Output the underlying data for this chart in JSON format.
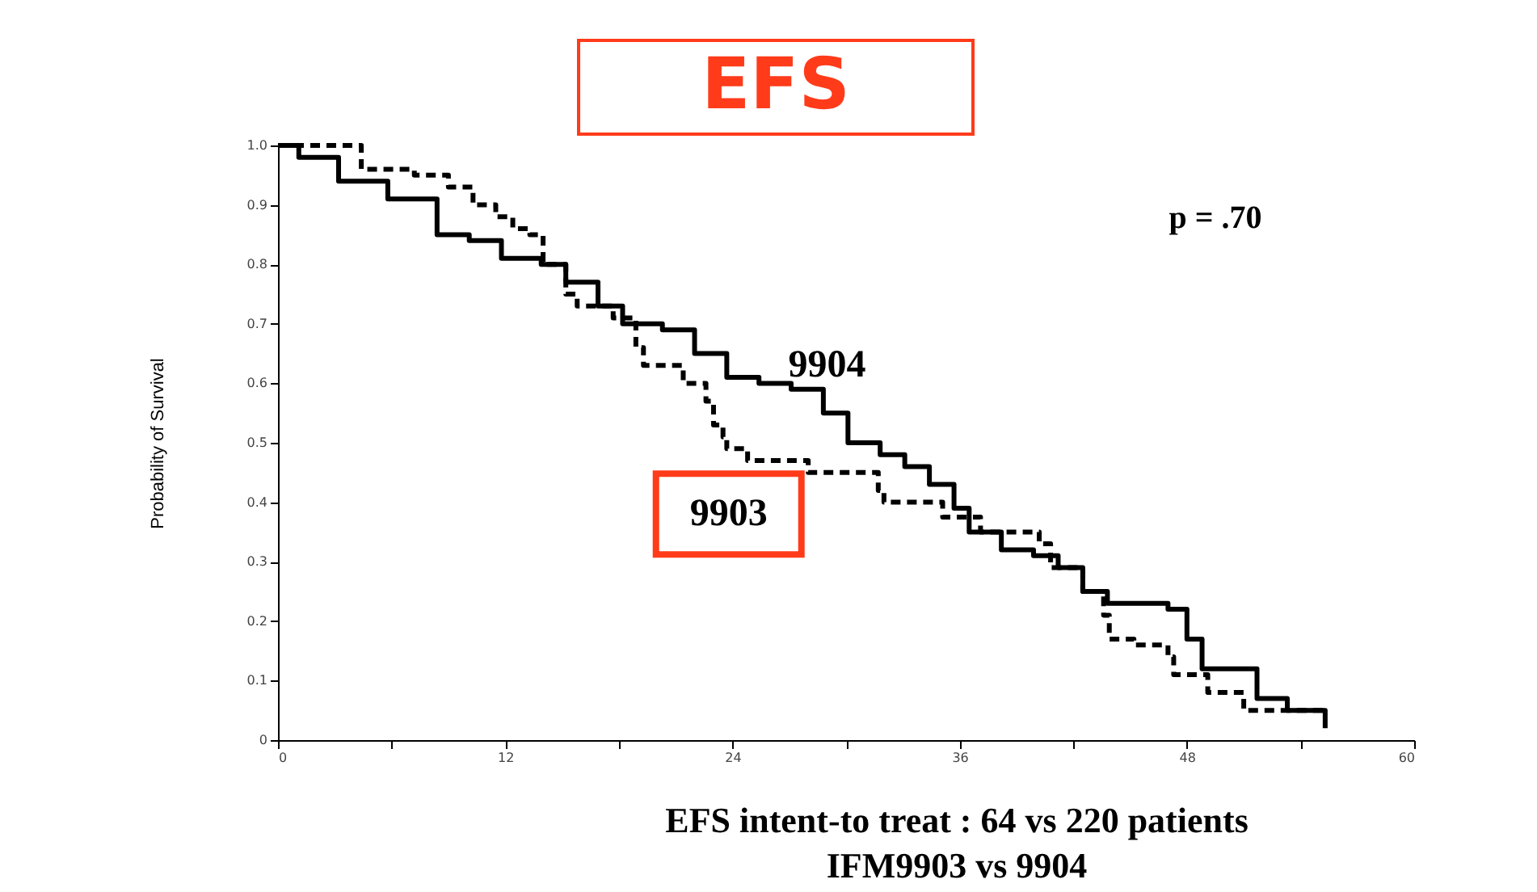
{
  "chart_data": {
    "type": "step",
    "title": "EFS",
    "ylabel": "Probability of Survival",
    "annotations": [
      "p = .70",
      "EFS intent-to treat : 64 vs 220 patients",
      "IFM9903 vs 9904"
    ],
    "xlim": [
      0,
      60
    ],
    "xticks": [
      0,
      {
        "value": 6,
        "label": null
      },
      12,
      {
        "value": 18,
        "label": null
      },
      24,
      {
        "value": 30,
        "label": null
      },
      36,
      {
        "value": 42,
        "label": null
      },
      48,
      {
        "value": 54,
        "label": null
      },
      60
    ],
    "ylim": [
      0,
      1.0
    ],
    "yticks": [
      0,
      0.1,
      0.2,
      0.3,
      0.4,
      0.5,
      0.6,
      0.7,
      0.8,
      0.9,
      {
        "value": 1.0,
        "label": "1.0"
      }
    ],
    "grid": false,
    "legend": false,
    "series": [
      {
        "name": "9904",
        "color": "#000000",
        "line_style": "solid",
        "x": [
          0,
          1.1,
          3.2,
          5.8,
          8.4,
          10.1,
          11.8,
          13.9,
          15.2,
          16.9,
          18.2,
          20.3,
          22.0,
          23.7,
          25.4,
          27.1,
          28.8,
          30.1,
          31.8,
          33.1,
          34.4,
          35.7,
          36.5,
          38.2,
          39.9,
          41.2,
          42.5,
          43.8,
          47.0,
          48.0,
          48.8,
          51.7,
          53.3,
          55.3
        ],
        "values": [
          1.0,
          0.98,
          0.94,
          0.91,
          0.85,
          0.84,
          0.81,
          0.8,
          0.77,
          0.73,
          0.7,
          0.69,
          0.65,
          0.61,
          0.6,
          0.59,
          0.55,
          0.5,
          0.48,
          0.46,
          0.43,
          0.39,
          0.35,
          0.32,
          0.31,
          0.29,
          0.25,
          0.23,
          0.22,
          0.17,
          0.12,
          0.07,
          0.05,
          0.02
        ]
      },
      {
        "name": "9903",
        "color": "#000000",
        "line_style": "dashed",
        "x": [
          0,
          4.4,
          7.2,
          9.0,
          10.3,
          11.5,
          12.4,
          13.3,
          14.0,
          15.2,
          15.8,
          17.7,
          18.9,
          19.3,
          21.4,
          22.6,
          23.0,
          23.5,
          23.7,
          24.8,
          28.0,
          31.7,
          32.0,
          35.1,
          37.1,
          40.2,
          40.8,
          42.5,
          43.6,
          43.9,
          45.2,
          47.0,
          47.3,
          49.1,
          51.0,
          55.3
        ],
        "values": [
          1.0,
          0.96,
          0.95,
          0.93,
          0.9,
          0.88,
          0.86,
          0.85,
          0.8,
          0.75,
          0.73,
          0.71,
          0.66,
          0.63,
          0.6,
          0.57,
          0.53,
          0.51,
          0.49,
          0.47,
          0.45,
          0.42,
          0.4,
          0.375,
          0.35,
          0.33,
          0.29,
          0.25,
          0.21,
          0.17,
          0.16,
          0.14,
          0.11,
          0.08,
          0.05,
          0.05
        ]
      }
    ]
  }
}
